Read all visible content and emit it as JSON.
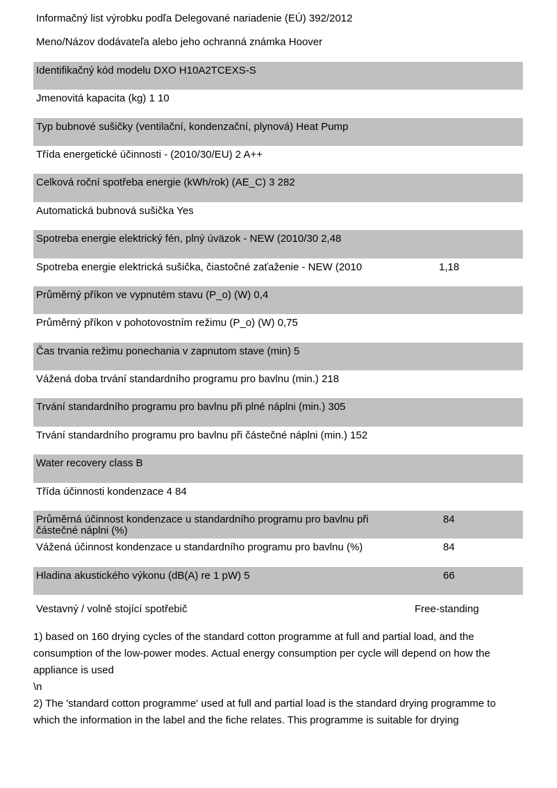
{
  "rows": [
    {
      "label": "Informačný list výrobku podľa Delegované nariadenie (EÚ) 392/2012",
      "value": null,
      "gray": false
    },
    {
      "label": "Meno/Názov dodávateľa alebo jeho ochranná známka Hoover",
      "value": null,
      "gray": false
    },
    {
      "label": "Identifikačný kód modelu DXO H10A2TCEXS-S",
      "value": null,
      "gray": true
    },
    {
      "label": "Jmenovitá kapacita (kg) 1 10",
      "value": null,
      "gray": false
    },
    {
      "label": "Typ bubnové sušičky (ventilační, kondenzační, plynová) Heat Pump",
      "value": null,
      "gray": true
    },
    {
      "label": "Třída energetické účinnosti - (2010/30/EU) 2 A++",
      "value": null,
      "gray": false
    },
    {
      "label": "Celková roční spotřeba energie (kWh/rok) (AE_C) 3 282",
      "value": null,
      "gray": true
    },
    {
      "label": "Automatická bubnová sušička Yes",
      "value": null,
      "gray": false
    },
    {
      "label": "Spotreba energie elektrický fén, plný úväzok - NEW (2010/30 2,48",
      "value": null,
      "gray": true
    },
    {
      "label": "Spotreba energie elektrická sušička, čiastočné zaťaženie - NEW (2010",
      "value": "1,18",
      "gray": false
    },
    {
      "label": "Průměrný příkon ve vypnutém stavu (P_o) (W) 0,4",
      "value": null,
      "gray": true
    },
    {
      "label": "Průměrný příkon v pohotovostním režimu (P_o) (W) 0,75",
      "value": null,
      "gray": false
    },
    {
      "label": "Čas trvania režimu ponechania v zapnutom stave (min) 5",
      "value": null,
      "gray": true
    },
    {
      "label": "Vážená doba trvání standardního programu pro bavlnu (min.) 218",
      "value": null,
      "gray": false
    },
    {
      "label": "Trvání standardního programu pro bavlnu při plné náplni (min.) 305",
      "value": null,
      "gray": true
    },
    {
      "label": "Trvání standardního programu pro bavlnu při částečné náplni (min.) 152",
      "value": null,
      "gray": false
    },
    {
      "label": "Water recovery class B",
      "value": null,
      "gray": true
    },
    {
      "label": "Třída účinnosti kondenzace 4 84",
      "value": null,
      "gray": false
    },
    {
      "label": "Průměrná účinnost kondenzace u standardního programu pro bavlnu při částečné náplni (%)",
      "value": "84",
      "gray": true
    },
    {
      "label": "Vážená účinnost kondenzace u standardního programu pro bavlnu (%)",
      "value": "84",
      "gray": false
    },
    {
      "label": "Hladina akustického výkonu (dB(A) re 1 pW) 5",
      "value": "66",
      "gray": true
    },
    {
      "label": "Vestavný / volně stojící spotřebič",
      "value": "Free-standing",
      "gray": false
    }
  ],
  "notes": [
    "1) based on 160 drying cycles of the standard cotton programme at full and partial load, and the consumption of the low-power modes. Actual energy consumption per cycle will depend on how the appliance is used",
    "\\n",
    "2) The 'standard cotton programme' used at full and partial load is the standard drying programme to",
    "which the information in the label and the fiche relates. This programme is suitable for drying"
  ],
  "colors": {
    "row_gray": "#c0c0c0"
  }
}
